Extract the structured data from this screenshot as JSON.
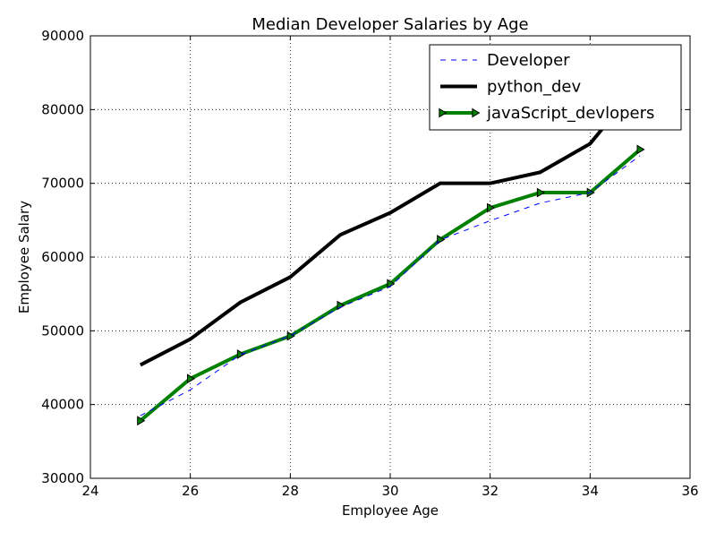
{
  "chart_data": {
    "type": "line",
    "title": "Median Developer Salaries by Age",
    "xlabel": "Employee  Age",
    "ylabel": "Employee Salary",
    "xlim": [
      24,
      36
    ],
    "ylim": [
      30000,
      90000
    ],
    "xticks": [
      24,
      26,
      28,
      30,
      32,
      34,
      36
    ],
    "yticks": [
      30000,
      40000,
      50000,
      60000,
      70000,
      80000,
      90000
    ],
    "grid": true,
    "legend_position": "top-right",
    "series": [
      {
        "name": "Developer",
        "color": "#0000ff",
        "style": "dashed",
        "x": [
          25,
          26,
          27,
          28,
          29,
          30,
          31,
          32,
          33,
          34,
          35
        ],
        "values": [
          38496,
          42000,
          46752,
          49320,
          53200,
          56000,
          62316,
          64928,
          67317,
          68748,
          73752
        ]
      },
      {
        "name": "python_dev",
        "color": "#000000",
        "style": "solid",
        "x": [
          25,
          26,
          27,
          28,
          29,
          30,
          31,
          32,
          33,
          34,
          35
        ],
        "values": [
          45372,
          48876,
          53850,
          57287,
          63016,
          65998,
          70003,
          70000,
          71496,
          75370,
          83640
        ]
      },
      {
        "name": "javaScript_devlopers",
        "color": "#008000",
        "style": "solid-marker",
        "marker": "triangle-right",
        "x": [
          25,
          26,
          27,
          28,
          29,
          30,
          31,
          32,
          33,
          34,
          35
        ],
        "values": [
          37810,
          43515,
          46823,
          49293,
          53437,
          56373,
          62375,
          66674,
          68745,
          68746,
          74583
        ]
      }
    ]
  }
}
